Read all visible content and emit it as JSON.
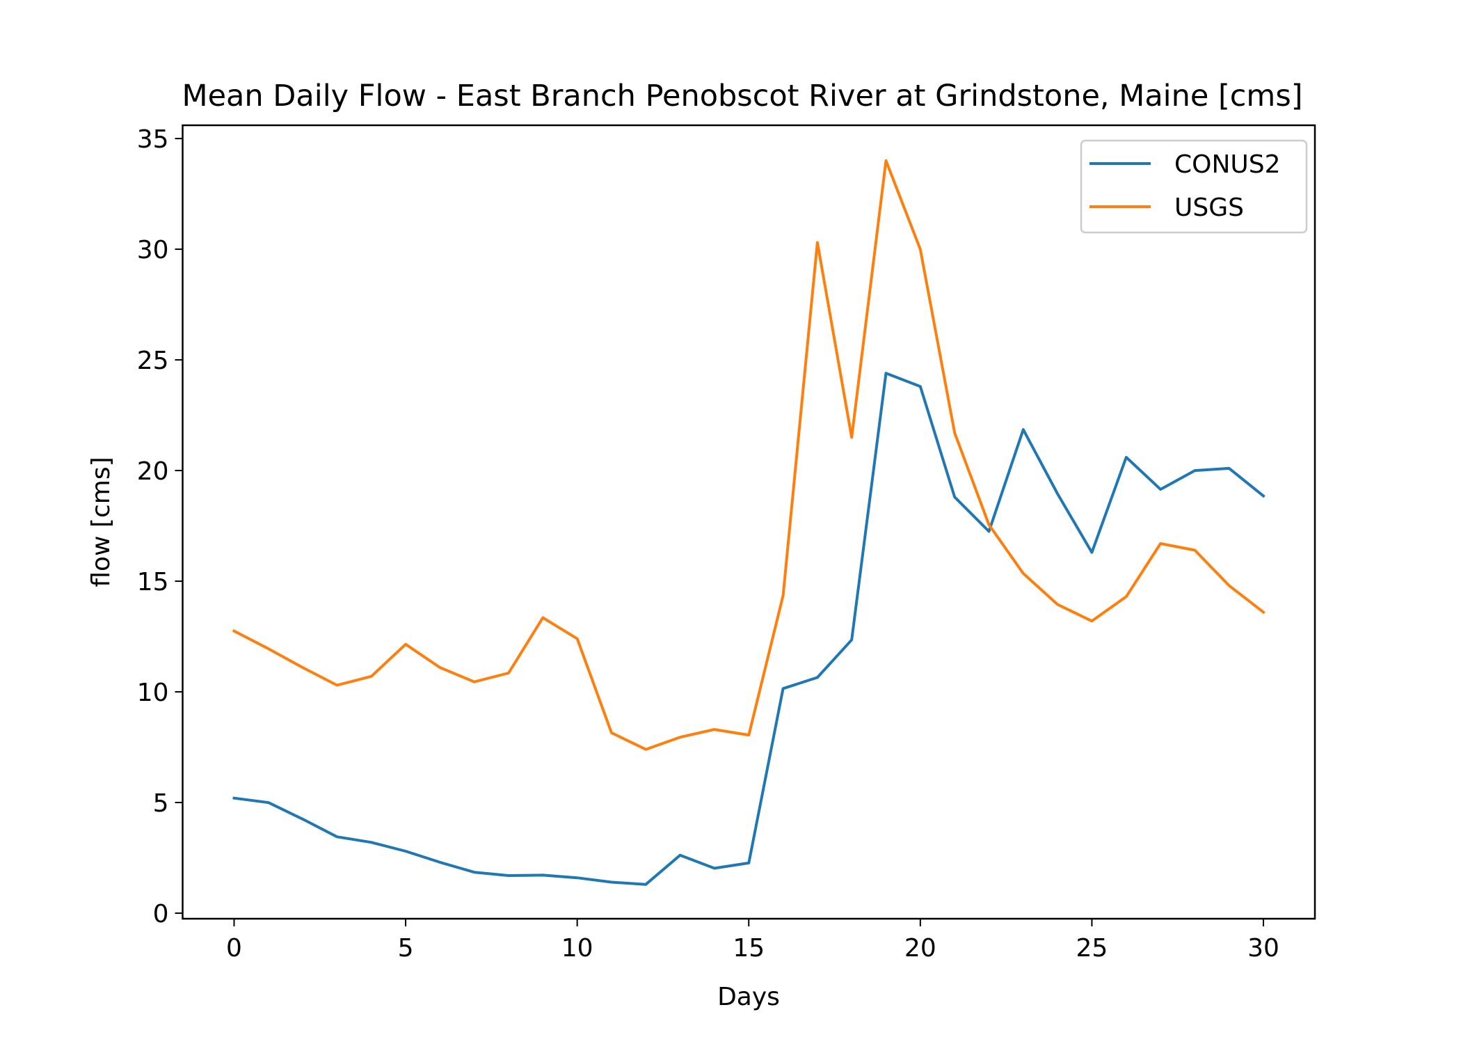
{
  "chart_data": {
    "type": "line",
    "title": "Mean Daily Flow - East Branch Penobscot River at Grindstone, Maine [cms]",
    "xlabel": "Days",
    "ylabel": "flow [cms]",
    "xlim": [
      -1.5,
      31.5
    ],
    "ylim": [
      -0.25,
      35.6
    ],
    "xticks": [
      0,
      5,
      10,
      15,
      20,
      25,
      30
    ],
    "yticks": [
      0,
      5,
      10,
      15,
      20,
      25,
      30,
      35
    ],
    "grid": false,
    "legend_position": "upper right",
    "x": [
      0,
      1,
      2,
      3,
      4,
      5,
      6,
      7,
      8,
      9,
      10,
      11,
      12,
      13,
      14,
      15,
      16,
      17,
      18,
      19,
      20,
      21,
      22,
      23,
      24,
      25,
      26,
      27,
      28,
      29,
      30
    ],
    "series": [
      {
        "name": "CONUS2",
        "color": "#1f77b4",
        "values": [
          5.2,
          5.0,
          4.25,
          3.45,
          3.2,
          2.8,
          2.3,
          1.85,
          1.7,
          1.72,
          1.6,
          1.4,
          1.3,
          2.62,
          2.03,
          2.27,
          10.15,
          10.65,
          12.35,
          24.4,
          23.8,
          18.8,
          17.25,
          21.85,
          18.95,
          16.3,
          20.6,
          19.15,
          20.0,
          20.1,
          18.85
        ]
      },
      {
        "name": "USGS",
        "color": "#ff7f0e",
        "values": [
          12.75,
          11.95,
          11.1,
          10.3,
          10.7,
          12.15,
          11.1,
          10.45,
          10.85,
          13.35,
          12.4,
          8.15,
          7.4,
          7.95,
          8.3,
          8.05,
          14.35,
          30.3,
          21.5,
          34.0,
          30.0,
          21.7,
          17.55,
          15.35,
          13.95,
          13.2,
          14.3,
          16.7,
          16.4,
          14.8,
          13.6
        ]
      }
    ]
  }
}
